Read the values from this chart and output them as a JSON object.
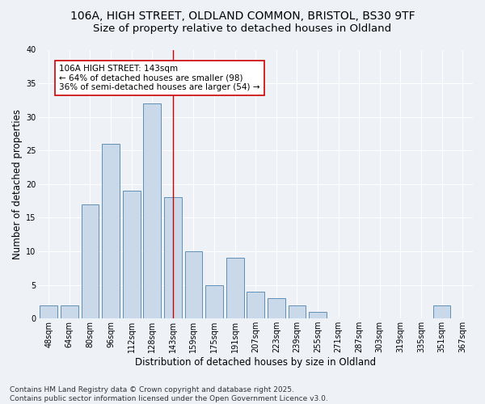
{
  "title_line1": "106A, HIGH STREET, OLDLAND COMMON, BRISTOL, BS30 9TF",
  "title_line2": "Size of property relative to detached houses in Oldland",
  "xlabel": "Distribution of detached houses by size in Oldland",
  "ylabel": "Number of detached properties",
  "footer": "Contains HM Land Registry data © Crown copyright and database right 2025.\nContains public sector information licensed under the Open Government Licence v3.0.",
  "categories": [
    "48sqm",
    "64sqm",
    "80sqm",
    "96sqm",
    "112sqm",
    "128sqm",
    "143sqm",
    "159sqm",
    "175sqm",
    "191sqm",
    "207sqm",
    "223sqm",
    "239sqm",
    "255sqm",
    "271sqm",
    "287sqm",
    "303sqm",
    "319sqm",
    "335sqm",
    "351sqm",
    "367sqm"
  ],
  "values": [
    2,
    2,
    17,
    26,
    19,
    32,
    18,
    10,
    5,
    9,
    4,
    3,
    2,
    1,
    0,
    0,
    0,
    0,
    0,
    2,
    0
  ],
  "bar_color": "#c9d9ea",
  "bar_edge_color": "#6090b8",
  "bar_edge_width": 0.7,
  "highlight_bar_index": 6,
  "highlight_line_color": "#cc0000",
  "annotation_text": "106A HIGH STREET: 143sqm\n← 64% of detached houses are smaller (98)\n36% of semi-detached houses are larger (54) →",
  "annotation_box_color": "#ffffff",
  "annotation_box_edge": "#cc0000",
  "ylim": [
    0,
    40
  ],
  "yticks": [
    0,
    5,
    10,
    15,
    20,
    25,
    30,
    35,
    40
  ],
  "background_color": "#eef2f7",
  "grid_color": "#ffffff",
  "title_fontsize": 10,
  "subtitle_fontsize": 9.5,
  "axis_label_fontsize": 8.5,
  "tick_fontsize": 7,
  "annot_fontsize": 7.5,
  "footer_fontsize": 6.5
}
